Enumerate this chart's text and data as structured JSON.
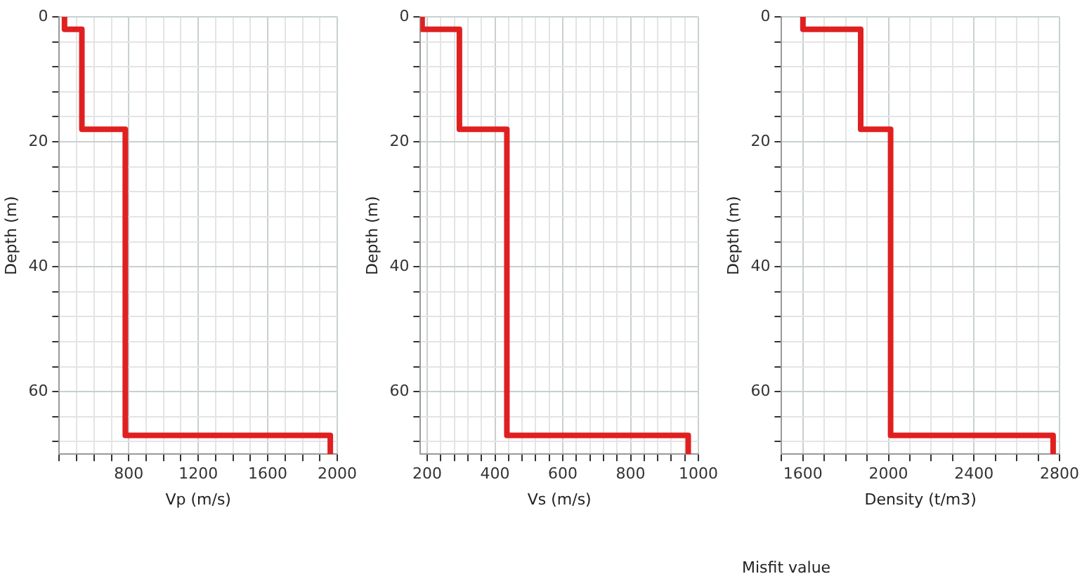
{
  "chart_data": [
    {
      "type": "line",
      "xlabel": "Vp (m/s)",
      "ylabel": "Depth (m)",
      "grid": true,
      "legend": false,
      "marker": "none",
      "line_style": "solid",
      "series": [
        {
          "color": "#e02020",
          "x": [
            430,
            430,
            530,
            530,
            780,
            780,
            1960,
            1960
          ],
          "values": [
            0,
            2,
            2,
            18,
            18,
            67,
            67,
            70
          ]
        }
      ],
      "xlim": [
        400,
        2000
      ],
      "xticks": [
        {
          "value": 400,
          "label": null
        },
        {
          "value": 500,
          "label": null
        },
        {
          "value": 600,
          "label": null
        },
        {
          "value": 700,
          "label": null
        },
        800,
        {
          "value": 900,
          "label": null
        },
        {
          "value": 1000,
          "label": null
        },
        {
          "value": 1100,
          "label": null
        },
        1200,
        {
          "value": 1300,
          "label": null
        },
        {
          "value": 1400,
          "label": null
        },
        {
          "value": 1500,
          "label": null
        },
        1600,
        {
          "value": 1700,
          "label": null
        },
        {
          "value": 1800,
          "label": null
        },
        {
          "value": 1900,
          "label": null
        },
        2000
      ],
      "ylim": [
        70,
        0
      ],
      "yticks": [
        0,
        {
          "value": 4,
          "label": null
        },
        {
          "value": 8,
          "label": null
        },
        {
          "value": 12,
          "label": null
        },
        {
          "value": 16,
          "label": null
        },
        20,
        {
          "value": 24,
          "label": null
        },
        {
          "value": 28,
          "label": null
        },
        {
          "value": 32,
          "label": null
        },
        {
          "value": 36,
          "label": null
        },
        40,
        {
          "value": 44,
          "label": null
        },
        {
          "value": 48,
          "label": null
        },
        {
          "value": 52,
          "label": null
        },
        {
          "value": 56,
          "label": null
        },
        60,
        {
          "value": 64,
          "label": null
        },
        {
          "value": 68,
          "label": null
        }
      ]
    },
    {
      "type": "line",
      "xlabel": "Vs (m/s)",
      "ylabel": "Depth (m)",
      "grid": true,
      "legend": false,
      "marker": "none",
      "line_style": "solid",
      "series": [
        {
          "color": "#e02020",
          "x": [
            185,
            185,
            295,
            295,
            435,
            435,
            970,
            970
          ],
          "values": [
            0,
            2,
            2,
            18,
            18,
            67,
            67,
            70
          ]
        }
      ],
      "xlim": [
        180,
        1000
      ],
      "xticks": [
        200,
        {
          "value": 240,
          "label": null
        },
        {
          "value": 280,
          "label": null
        },
        {
          "value": 320,
          "label": null
        },
        {
          "value": 360,
          "label": null
        },
        400,
        {
          "value": 440,
          "label": null
        },
        {
          "value": 480,
          "label": null
        },
        {
          "value": 520,
          "label": null
        },
        {
          "value": 560,
          "label": null
        },
        600,
        {
          "value": 640,
          "label": null
        },
        {
          "value": 680,
          "label": null
        },
        {
          "value": 720,
          "label": null
        },
        {
          "value": 760,
          "label": null
        },
        800,
        {
          "value": 840,
          "label": null
        },
        {
          "value": 880,
          "label": null
        },
        {
          "value": 920,
          "label": null
        },
        {
          "value": 960,
          "label": null
        },
        1000
      ],
      "ylim": [
        70,
        0
      ],
      "yticks": [
        0,
        {
          "value": 4,
          "label": null
        },
        {
          "value": 8,
          "label": null
        },
        {
          "value": 12,
          "label": null
        },
        {
          "value": 16,
          "label": null
        },
        20,
        {
          "value": 24,
          "label": null
        },
        {
          "value": 28,
          "label": null
        },
        {
          "value": 32,
          "label": null
        },
        {
          "value": 36,
          "label": null
        },
        40,
        {
          "value": 44,
          "label": null
        },
        {
          "value": 48,
          "label": null
        },
        {
          "value": 52,
          "label": null
        },
        {
          "value": 56,
          "label": null
        },
        60,
        {
          "value": 64,
          "label": null
        },
        {
          "value": 68,
          "label": null
        }
      ]
    },
    {
      "type": "line",
      "xlabel": "Density (t/m3)",
      "ylabel": "Depth (m)",
      "grid": true,
      "legend": false,
      "marker": "none",
      "line_style": "solid",
      "annotations": [
        "Misfit value"
      ],
      "series": [
        {
          "color": "#e02020",
          "x": [
            1600,
            1600,
            1870,
            1870,
            2010,
            2010,
            2770,
            2770
          ],
          "values": [
            0,
            2,
            2,
            18,
            18,
            67,
            67,
            70
          ]
        }
      ],
      "xlim": [
        1500,
        2800
      ],
      "xticks": [
        {
          "value": 1500,
          "label": null
        },
        1600,
        {
          "value": 1700,
          "label": null
        },
        {
          "value": 1800,
          "label": null
        },
        {
          "value": 1900,
          "label": null
        },
        2000,
        {
          "value": 2100,
          "label": null
        },
        {
          "value": 2200,
          "label": null
        },
        {
          "value": 2300,
          "label": null
        },
        2400,
        {
          "value": 2500,
          "label": null
        },
        {
          "value": 2600,
          "label": null
        },
        {
          "value": 2700,
          "label": null
        },
        2800
      ],
      "ylim": [
        70,
        0
      ],
      "yticks": [
        0,
        {
          "value": 4,
          "label": null
        },
        {
          "value": 8,
          "label": null
        },
        {
          "value": 12,
          "label": null
        },
        {
          "value": 16,
          "label": null
        },
        20,
        {
          "value": 24,
          "label": null
        },
        {
          "value": 28,
          "label": null
        },
        {
          "value": 32,
          "label": null
        },
        {
          "value": 36,
          "label": null
        },
        40,
        {
          "value": 44,
          "label": null
        },
        {
          "value": 48,
          "label": null
        },
        {
          "value": 52,
          "label": null
        },
        {
          "value": 56,
          "label": null
        },
        60,
        {
          "value": 64,
          "label": null
        },
        {
          "value": 68,
          "label": null
        }
      ]
    }
  ]
}
